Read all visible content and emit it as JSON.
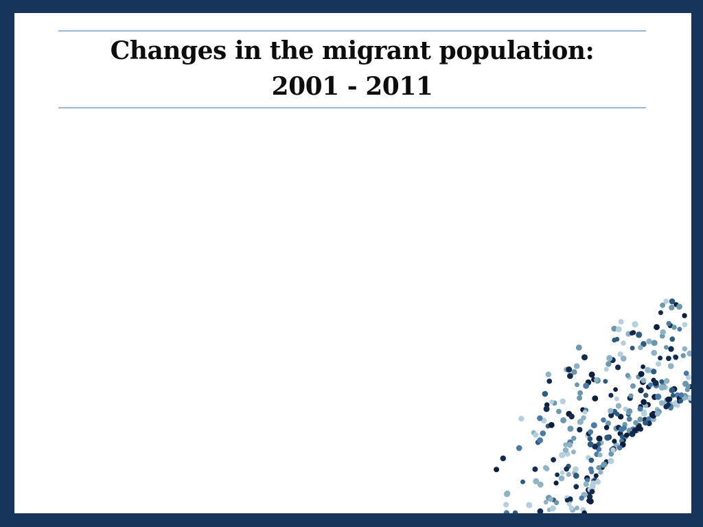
{
  "slide": {
    "title_line1": "Changes in the migrant population:",
    "title_line2": "2001 - 2011"
  },
  "theme": {
    "frame_color": "#17355b",
    "rule_color": "#9db6d2",
    "dot_palette": [
      "#0c1f3d",
      "#132b4e",
      "#2d5b7e",
      "#4a7aa8",
      "#6b98ad",
      "#8fb3c4",
      "#b6cfdc"
    ]
  }
}
